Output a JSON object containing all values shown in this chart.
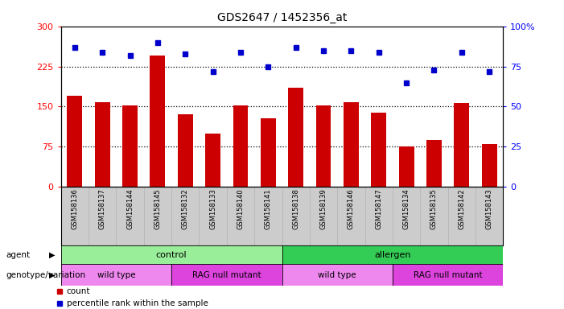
{
  "title": "GDS2647 / 1452356_at",
  "samples": [
    "GSM158136",
    "GSM158137",
    "GSM158144",
    "GSM158145",
    "GSM158132",
    "GSM158133",
    "GSM158140",
    "GSM158141",
    "GSM158138",
    "GSM158139",
    "GSM158146",
    "GSM158147",
    "GSM158134",
    "GSM158135",
    "GSM158142",
    "GSM158143"
  ],
  "counts": [
    170,
    158,
    152,
    245,
    135,
    100,
    152,
    128,
    185,
    152,
    158,
    138,
    75,
    88,
    157,
    80
  ],
  "percentiles": [
    87,
    84,
    82,
    90,
    83,
    72,
    84,
    75,
    87,
    85,
    85,
    84,
    65,
    73,
    84,
    72
  ],
  "left_ylim": [
    0,
    300
  ],
  "left_yticks": [
    0,
    75,
    150,
    225,
    300
  ],
  "right_ylim": [
    0,
    100
  ],
  "right_yticks": [
    0,
    25,
    50,
    75,
    100
  ],
  "bar_color": "#cc0000",
  "dot_color": "#0000cc",
  "dotted_line_values": [
    75,
    150,
    225
  ],
  "agent_groups": [
    {
      "label": "control",
      "start": 0,
      "end": 8,
      "color": "#99ee99"
    },
    {
      "label": "allergen",
      "start": 8,
      "end": 16,
      "color": "#33cc55"
    }
  ],
  "genotype_groups": [
    {
      "label": "wild type",
      "start": 0,
      "end": 4,
      "color": "#ee88ee"
    },
    {
      "label": "RAG null mutant",
      "start": 4,
      "end": 8,
      "color": "#dd44dd"
    },
    {
      "label": "wild type",
      "start": 8,
      "end": 12,
      "color": "#ee88ee"
    },
    {
      "label": "RAG null mutant",
      "start": 12,
      "end": 16,
      "color": "#dd44dd"
    }
  ],
  "legend_count_color": "#cc0000",
  "legend_pct_color": "#0000cc",
  "bg_color": "#ffffff",
  "tick_area_bg": "#cccccc"
}
